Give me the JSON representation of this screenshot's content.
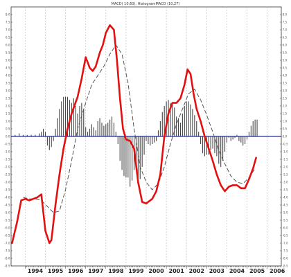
{
  "chart_data": {
    "type": "line",
    "title": "MACD( 10,60), HistogramMACD (10,27)",
    "colors": {
      "macd": "#e41010",
      "signal": "#555555",
      "histogram": "#444444",
      "zero_line": "#1f2a9a",
      "grid": "#bbbbbb",
      "axis": "#333333"
    },
    "ylim": [
      -8.5,
      8.5
    ],
    "y_ticks": [
      8.0,
      7.5,
      7.0,
      6.5,
      6.0,
      5.5,
      5.0,
      4.5,
      4.0,
      3.5,
      3.0,
      2.5,
      2.0,
      1.5,
      1.0,
      0.5,
      0.0,
      -0.5,
      -1.0,
      -1.5,
      -2.0,
      -2.5,
      -3.0,
      -3.5,
      -4.0,
      -4.5,
      -5.0,
      -5.5,
      -6.0,
      -6.5,
      -7.0,
      -7.5,
      -8.0,
      -8.5
    ],
    "xlim": [
      1993.3,
      2006.7
    ],
    "x_ticks": [
      "1994",
      "1995",
      "1996",
      "1997",
      "1998",
      "1999",
      "2000",
      "2001",
      "2002",
      "2003",
      "2004",
      "2005",
      "2006"
    ],
    "grid": true,
    "series": [
      {
        "name": "MACD",
        "x": [
          1993.35,
          1993.6,
          1993.8,
          1994.0,
          1994.2,
          1994.4,
          1994.6,
          1994.8,
          1995.0,
          1995.2,
          1995.3,
          1995.5,
          1995.7,
          1995.9,
          1996.1,
          1996.3,
          1996.6,
          1996.8,
          1997.0,
          1997.2,
          1997.35,
          1997.5,
          1997.7,
          1997.85,
          1998.0,
          1998.2,
          1998.4,
          1998.55,
          1998.7,
          1998.85,
          1999.0,
          1999.2,
          1999.4,
          1999.6,
          1999.8,
          2000.0,
          2000.1,
          2000.3,
          2000.5,
          2000.7,
          2000.9,
          2001.1,
          2001.3,
          2001.5,
          2001.7,
          2001.9,
          2002.05,
          2002.2,
          2002.35,
          2002.5,
          2002.7,
          2002.9,
          2003.1,
          2003.3,
          2003.5,
          2003.7,
          2003.9,
          2004.1,
          2004.3,
          2004.5,
          2004.7,
          2004.9,
          2005.1,
          2005.3,
          2005.45
        ],
        "values": [
          -7.0,
          -5.6,
          -4.2,
          -4.1,
          -4.2,
          -4.1,
          -4.0,
          -3.8,
          -6.2,
          -7.0,
          -6.8,
          -4.5,
          -2.5,
          -0.8,
          0.5,
          1.5,
          2.6,
          3.8,
          5.2,
          4.5,
          4.3,
          4.6,
          5.5,
          6.0,
          6.8,
          7.3,
          7.0,
          5.0,
          2.5,
          0.5,
          -0.2,
          -0.3,
          -0.8,
          -3.0,
          -4.3,
          -4.4,
          -4.3,
          -4.1,
          -3.6,
          -2.5,
          0.0,
          1.5,
          2.2,
          2.2,
          2.5,
          3.4,
          4.4,
          4.1,
          2.8,
          1.8,
          1.0,
          0.0,
          -0.8,
          -1.6,
          -2.5,
          -3.2,
          -3.6,
          -3.3,
          -3.2,
          -3.2,
          -3.4,
          -3.4,
          -2.8,
          -2.1,
          -1.4
        ]
      },
      {
        "name": "Signal",
        "x": [
          1993.9,
          1994.2,
          1994.5,
          1994.8,
          1995.1,
          1995.4,
          1995.7,
          1996.0,
          1996.3,
          1996.6,
          1997.0,
          1997.3,
          1997.6,
          1997.9,
          1998.2,
          1998.5,
          1998.8,
          1999.1,
          1999.4,
          1999.7,
          2000.0,
          2000.3,
          2000.6,
          2000.9,
          2001.2,
          2001.5,
          2001.8,
          2002.1,
          2002.4,
          2002.7,
          2003.0,
          2003.3,
          2003.6,
          2003.9,
          2004.2,
          2004.5,
          2004.8,
          2005.1,
          2005.4
        ],
        "values": [
          -4.0,
          -4.1,
          -4.1,
          -4.2,
          -4.6,
          -5.0,
          -4.9,
          -3.5,
          -1.6,
          0.5,
          2.2,
          3.4,
          4.0,
          4.6,
          5.4,
          6.0,
          5.4,
          3.5,
          0.5,
          -2.0,
          -3.0,
          -3.5,
          -3.1,
          -2.0,
          -0.5,
          0.8,
          1.8,
          2.8,
          3.1,
          2.4,
          1.4,
          0.3,
          -0.9,
          -1.8,
          -2.6,
          -3.0,
          -3.1,
          -2.7,
          -2.1
        ]
      },
      {
        "name": "Histogram",
        "x": [
          1993.5,
          1993.7,
          1993.9,
          1994.1,
          1994.3,
          1994.5,
          1994.7,
          1994.8,
          1994.9,
          1995.0,
          1995.1,
          1995.2,
          1995.3,
          1995.4,
          1995.5,
          1995.6,
          1995.7,
          1995.8,
          1995.9,
          1996.0,
          1996.1,
          1996.2,
          1996.3,
          1996.4,
          1996.5,
          1996.6,
          1996.7,
          1996.8,
          1996.9,
          1997.0,
          1997.1,
          1997.2,
          1997.3,
          1997.4,
          1997.5,
          1997.6,
          1997.7,
          1997.8,
          1997.9,
          1998.0,
          1998.1,
          1998.2,
          1998.3,
          1998.4,
          1998.5,
          1998.6,
          1998.7,
          1998.8,
          1998.9,
          1999.0,
          1999.1,
          1999.2,
          1999.3,
          1999.4,
          1999.5,
          1999.6,
          1999.7,
          1999.8,
          1999.9,
          2000.0,
          2000.1,
          2000.2,
          2000.3,
          2000.4,
          2000.5,
          2000.6,
          2000.7,
          2000.8,
          2000.9,
          2001.0,
          2001.1,
          2001.2,
          2001.3,
          2001.4,
          2001.5,
          2001.6,
          2001.7,
          2001.8,
          2001.9,
          2002.0,
          2002.1,
          2002.2,
          2002.3,
          2002.4,
          2002.5,
          2002.6,
          2002.7,
          2002.8,
          2002.9,
          2003.0,
          2003.1,
          2003.2,
          2003.3,
          2003.4,
          2003.5,
          2003.6,
          2003.7,
          2003.8,
          2003.9,
          2004.0,
          2004.1,
          2004.2,
          2004.3,
          2004.4,
          2004.5,
          2004.6,
          2004.7,
          2004.8,
          2004.9,
          2005.0,
          2005.1,
          2005.2,
          2005.3,
          2005.4,
          2005.5
        ],
        "values": [
          0.1,
          0.2,
          0.1,
          0.1,
          0.1,
          0.1,
          0.2,
          0.3,
          0.5,
          0.3,
          -0.6,
          -0.9,
          -0.7,
          -0.3,
          0.5,
          1.2,
          1.8,
          2.3,
          2.6,
          2.6,
          2.6,
          2.4,
          2.2,
          2.5,
          2.0,
          1.5,
          2.0,
          2.2,
          1.8,
          0.6,
          0.3,
          0.5,
          0.8,
          0.6,
          0.4,
          1.0,
          1.2,
          0.9,
          0.7,
          0.8,
          0.9,
          1.1,
          1.3,
          0.9,
          0.3,
          -0.5,
          -1.6,
          -2.2,
          -2.6,
          -2.7,
          -2.7,
          -3.3,
          -2.9,
          -2.2,
          -2.0,
          -2.8,
          -2.8,
          -2.0,
          -1.2,
          -0.3,
          -0.5,
          -0.6,
          -0.5,
          -0.4,
          -0.3,
          0.4,
          1.0,
          1.6,
          2.0,
          2.3,
          2.4,
          2.2,
          2.1,
          1.9,
          1.3,
          1.2,
          0.9,
          1.5,
          2.0,
          2.3,
          2.3,
          2.1,
          1.8,
          1.4,
          1.0,
          0.3,
          -0.5,
          -1.1,
          -1.3,
          -1.2,
          -1.2,
          -0.9,
          -0.8,
          -1.1,
          -1.3,
          -1.8,
          -2.0,
          -1.6,
          -1.0,
          -0.4,
          -0.1,
          -0.3,
          -0.2,
          -0.1,
          0.1,
          -0.3,
          -0.4,
          -0.6,
          -0.5,
          -0.2,
          0.3,
          0.7,
          1.0,
          1.1,
          1.1
        ]
      }
    ]
  }
}
